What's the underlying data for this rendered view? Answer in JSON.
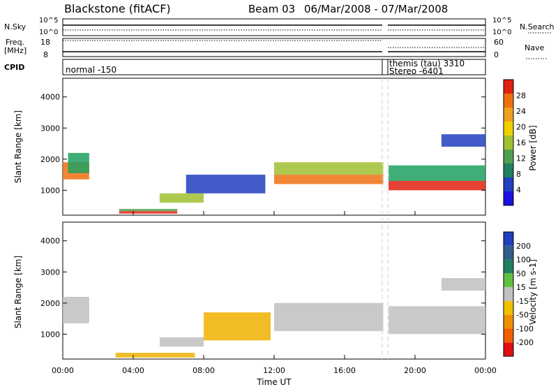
{
  "header": {
    "station": "Blackstone (fitACF)",
    "beam": "Beam 03",
    "dates": "06/Mar/2008 - 07/Mar/2008"
  },
  "top_panels": {
    "nsky_label": "N.Sky",
    "nsky_ticks": [
      "10^5",
      "10^0"
    ],
    "nsearch_label": "N.Search",
    "freq_label_1": "Freq.",
    "freq_label_2": "[MHz]",
    "freq_ticks": [
      "18",
      "8"
    ],
    "nave_ticks": [
      "60",
      "0"
    ],
    "nave_label": "Nave",
    "cpid_label": "CPID",
    "cpid_entries": [
      "normal -150",
      "themis (tau) 3310",
      "Stereo -6401"
    ]
  },
  "colorbars": {
    "power": {
      "label": "Power [dB]",
      "ticks": [
        "4",
        "8",
        "12",
        "16",
        "20",
        "24",
        "28"
      ],
      "colors": [
        "#1a10e0",
        "#2040c0",
        "#208060",
        "#50a050",
        "#a0c030",
        "#f0d000",
        "#f0a020",
        "#f07010",
        "#e02010"
      ]
    },
    "velocity": {
      "label": "Velocity [m s-1]",
      "ticks": [
        "200",
        "100",
        "50",
        "15",
        "-15",
        "-50",
        "-100",
        "-200"
      ],
      "colors": [
        "#2040c0",
        "#30608a",
        "#208060",
        "#60c040",
        "#c0c0c0",
        "#f0c000",
        "#f09000",
        "#f06000",
        "#e01010"
      ]
    }
  },
  "chart_data": [
    {
      "type": "heatmap",
      "name": "power",
      "ylabel": "Slant Range [km]",
      "y_ticks": [
        "1000",
        "2000",
        "3000",
        "4000"
      ],
      "ylim": [
        200,
        4600
      ],
      "x_ticks": [
        "00:00",
        "04:00",
        "08:00",
        "12:00",
        "16:00",
        "20:00",
        "00:00"
      ],
      "xlim_hours": [
        0,
        24
      ],
      "bands": [
        {
          "t0": 0.0,
          "t1": 1.5,
          "r0": 1350,
          "r1": 1900,
          "color": "#f07010"
        },
        {
          "t0": 0.3,
          "t1": 1.5,
          "r0": 1550,
          "r1": 2200,
          "color": "#20a060"
        },
        {
          "t0": 3.2,
          "t1": 6.5,
          "r0": 250,
          "r1": 330,
          "color": "#e02010"
        },
        {
          "t0": 3.2,
          "t1": 6.5,
          "r0": 330,
          "r1": 400,
          "color": "#50a050"
        },
        {
          "t0": 5.5,
          "t1": 8.0,
          "r0": 600,
          "r1": 900,
          "color": "#a0c030"
        },
        {
          "t0": 7.0,
          "t1": 11.5,
          "r0": 900,
          "r1": 1500,
          "color": "#2040c0"
        },
        {
          "t0": 12.0,
          "t1": 18.2,
          "r0": 1200,
          "r1": 1500,
          "color": "#f07010"
        },
        {
          "t0": 12.0,
          "t1": 18.2,
          "r0": 1500,
          "r1": 1900,
          "color": "#a0c030"
        },
        {
          "t0": 18.5,
          "t1": 24.0,
          "r0": 1000,
          "r1": 1300,
          "color": "#e02010"
        },
        {
          "t0": 18.5,
          "t1": 24.0,
          "r0": 1300,
          "r1": 1800,
          "color": "#20a060"
        },
        {
          "t0": 21.5,
          "t1": 24.0,
          "r0": 2400,
          "r1": 2800,
          "color": "#2040c0"
        }
      ]
    },
    {
      "type": "heatmap",
      "name": "velocity",
      "ylabel": "Slant Range [km]",
      "y_ticks": [
        "1000",
        "2000",
        "3000",
        "4000"
      ],
      "ylim": [
        200,
        4600
      ],
      "x_ticks": [
        "00:00",
        "04:00",
        "08:00",
        "12:00",
        "16:00",
        "20:00",
        "00:00"
      ],
      "x_title": "Time UT",
      "xlim_hours": [
        0,
        24
      ],
      "bands": [
        {
          "t0": 0.0,
          "t1": 1.5,
          "r0": 1350,
          "r1": 2200,
          "color": "#c0c0c0"
        },
        {
          "t0": 3.0,
          "t1": 7.5,
          "r0": 250,
          "r1": 400,
          "color": "#f0b000"
        },
        {
          "t0": 5.5,
          "t1": 8.0,
          "r0": 600,
          "r1": 900,
          "color": "#c0c0c0"
        },
        {
          "t0": 8.0,
          "t1": 11.8,
          "r0": 800,
          "r1": 1700,
          "color": "#f0b000"
        },
        {
          "t0": 12.0,
          "t1": 18.2,
          "r0": 1100,
          "r1": 2000,
          "color": "#c0c0c0"
        },
        {
          "t0": 18.5,
          "t1": 24.0,
          "r0": 1000,
          "r1": 1900,
          "color": "#c0c0c0"
        },
        {
          "t0": 21.5,
          "t1": 24.0,
          "r0": 2400,
          "r1": 2800,
          "color": "#c0c0c0"
        }
      ]
    }
  ]
}
